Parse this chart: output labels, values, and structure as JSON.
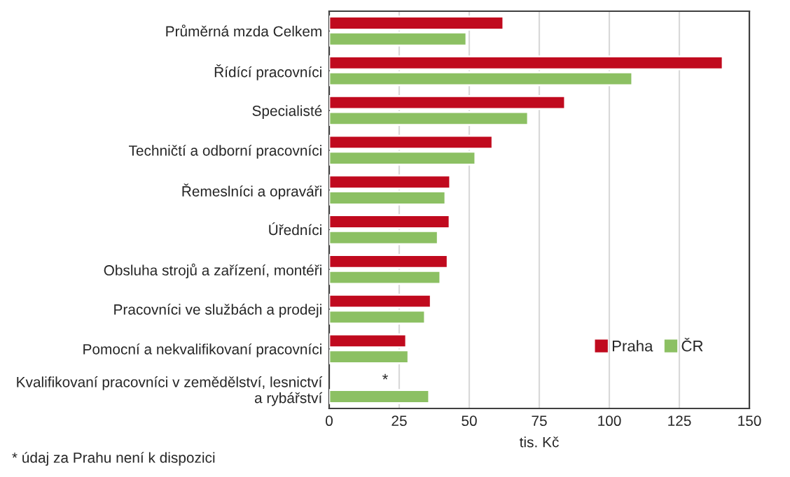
{
  "chart_data": {
    "type": "bar",
    "orientation": "horizontal",
    "xlabel": "tis. Kč",
    "categories": [
      "Průměrná mzda Celkem",
      "Řídící pracovníci",
      "Specialisté",
      "Techničtí a odborní pracovníci",
      "Řemeslníci a opraváři",
      "Úředníci",
      "Obsluha strojů a zařízení, montéři",
      "Pracovníci ve službách a prodeji",
      "Pomocní a nekvalifikovaní pracovníci",
      "Kvalifikovaní pracovníci v zemědělství, lesnictví\na rybářství"
    ],
    "series": [
      {
        "name": "Praha",
        "color": "#c00a1e",
        "values": [
          62.2,
          140.5,
          84.2,
          58.3,
          43.2,
          43,
          42.3,
          36.3,
          27.5,
          null
        ]
      },
      {
        "name": "ČR",
        "color": "#8cc063",
        "values": [
          49,
          108.2,
          71,
          52.2,
          41.5,
          38.8,
          39.7,
          34.2,
          28.3,
          35.7
        ]
      }
    ],
    "xlim": [
      0,
      150
    ],
    "xticks": [
      0,
      25,
      50,
      75,
      100,
      125,
      150
    ],
    "grid": "x",
    "legend": "bottom right",
    "annotations": [
      {
        "text": "*",
        "x": 20,
        "y": "Kvalifikovaní pracovníci v zemědělství, lesnictví\na rybářství"
      },
      "* údaj za Prahu není k dispozici"
    ]
  }
}
